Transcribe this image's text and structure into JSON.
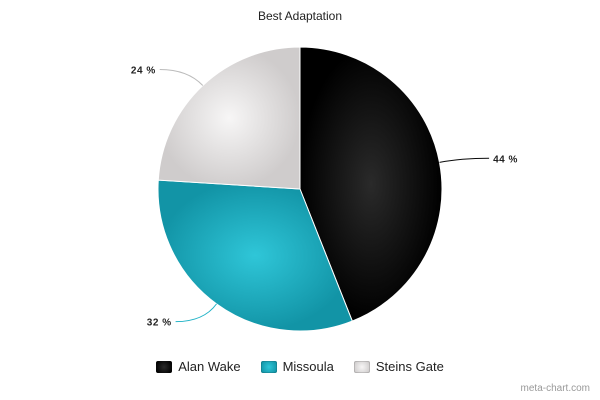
{
  "chart_data": {
    "type": "pie",
    "title": "Best Adaptation",
    "categories": [
      "Alan Wake",
      "Missoula",
      "Steins Gate"
    ],
    "values": [
      44,
      32,
      24
    ],
    "value_labels": [
      "44 %",
      "32 %",
      "24 %"
    ],
    "colors": [
      "#0a0a0a",
      "#21b3c7",
      "#e2e0e0"
    ],
    "legend_position": "bottom",
    "start_angle_deg": 0,
    "direction": "clockwise"
  },
  "watermark": "meta-chart.com"
}
